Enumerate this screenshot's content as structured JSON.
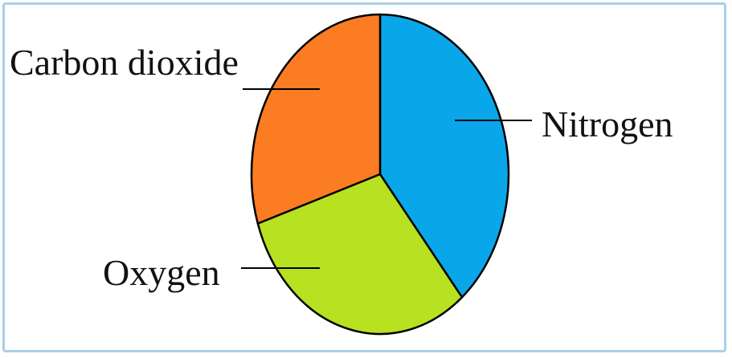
{
  "chart_data": {
    "type": "pie",
    "categories": [
      "Nitrogen",
      "Oxygen",
      "Carbon dioxide"
    ],
    "values": [
      39,
      31,
      30
    ],
    "colors": [
      "#0aa6ea",
      "#b7e121",
      "#fb7c22"
    ],
    "title": "",
    "legend": "none",
    "labels_style": "leader-lines"
  }
}
